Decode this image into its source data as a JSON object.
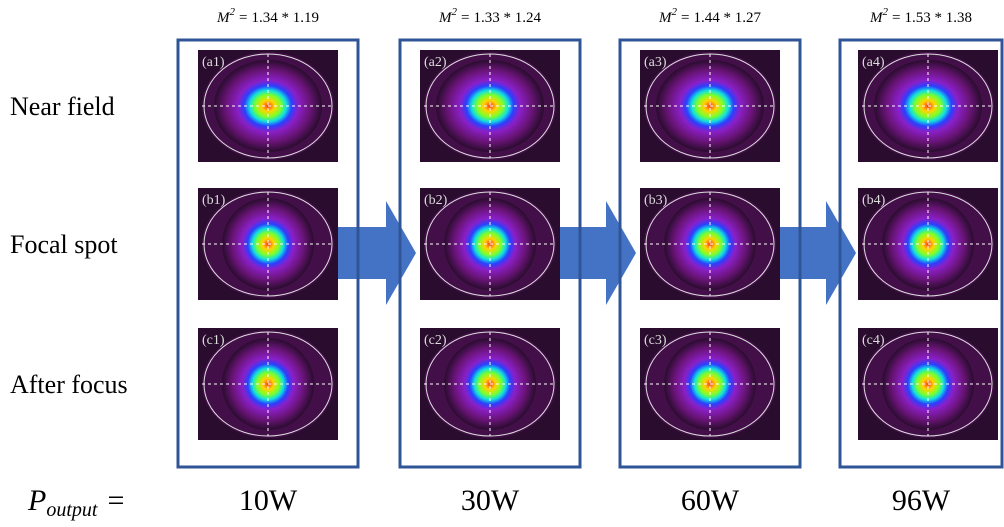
{
  "m2_symbol": {
    "base": "M",
    "sup": "2",
    "eq": "="
  },
  "row_labels": [
    "Near field",
    "Focal spot",
    "After focus"
  ],
  "output_label": {
    "base": "P",
    "sub": "output",
    "eq": "="
  },
  "columns": [
    {
      "m2": "1.34 * 1.19",
      "panels": [
        "(a1)",
        "(b1)",
        "(c1)"
      ],
      "power": "10W"
    },
    {
      "m2": "1.33 * 1.24",
      "panels": [
        "(a2)",
        "(b2)",
        "(c2)"
      ],
      "power": "30W"
    },
    {
      "m2": "1.44 * 1.27",
      "panels": [
        "(a3)",
        "(b3)",
        "(c3)"
      ],
      "power": "60W"
    },
    {
      "m2": "1.53 * 1.38",
      "panels": [
        "(a4)",
        "(b4)",
        "(c4)"
      ],
      "power": "96W"
    }
  ]
}
